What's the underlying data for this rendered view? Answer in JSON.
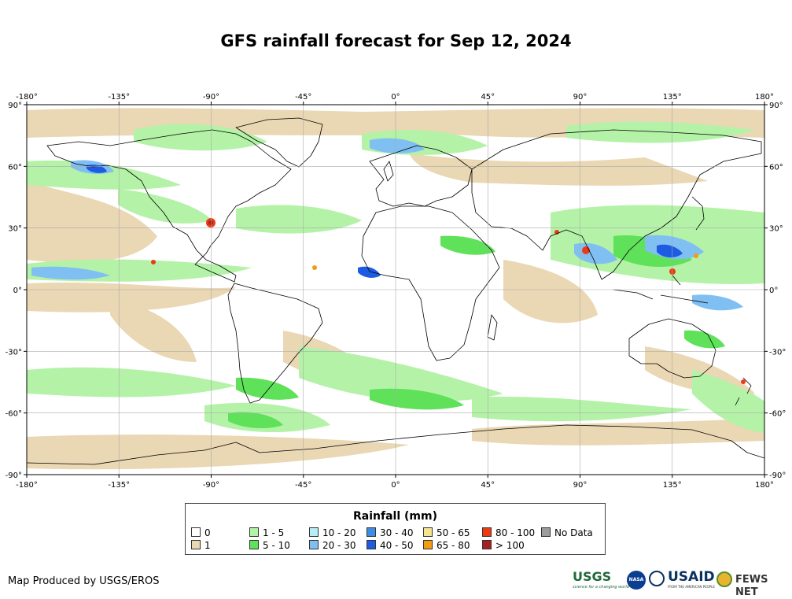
{
  "title": "GFS rainfall forecast for Sep 12, 2024",
  "map": {
    "projection": "equirectangular",
    "lon_range": [
      -180,
      180
    ],
    "lat_range": [
      -90,
      90
    ],
    "grid": true,
    "lon_ticks": [
      "-180°",
      "-135°",
      "-90°",
      "-45°",
      "0°",
      "45°",
      "90°",
      "135°",
      "180°"
    ],
    "lat_ticks": [
      "90°",
      "60°",
      "30°",
      "0°",
      "-30°",
      "-60°",
      "-90°"
    ],
    "colors": {
      "land_outline": "#000000",
      "grid": "#aaaaaa",
      "frame": "#000000"
    }
  },
  "legend": {
    "title": "Rainfall (mm)",
    "items": [
      {
        "label": "0",
        "color": "#ffffff"
      },
      {
        "label": "1",
        "color": "#ead7b3"
      },
      {
        "label": "1 - 5",
        "color": "#b4f2a8"
      },
      {
        "label": "5 - 10",
        "color": "#5fe15a"
      },
      {
        "label": "10 - 20",
        "color": "#b6f0f6"
      },
      {
        "label": "20 - 30",
        "color": "#80bff2"
      },
      {
        "label": "30 - 40",
        "color": "#3d8de6"
      },
      {
        "label": "40 - 50",
        "color": "#1e5be3"
      },
      {
        "label": "50 - 65",
        "color": "#f6e390"
      },
      {
        "label": "65 - 80",
        "color": "#f39b13"
      },
      {
        "label": "80 - 100",
        "color": "#ee3a12"
      },
      {
        "label": "> 100",
        "color": "#a81f1f"
      },
      {
        "label": "No Data",
        "color": "#9c9c9c"
      }
    ]
  },
  "footer": {
    "credit": "Map Produced by USGS/EROS",
    "logos": {
      "usgs": "USGS",
      "usgs_tagline": "science for a changing world",
      "nasa": "NASA",
      "usaid": "USAID",
      "usaid_tagline": "FROM THE AMERICAN PEOPLE",
      "fews": "FEWS NET"
    }
  }
}
